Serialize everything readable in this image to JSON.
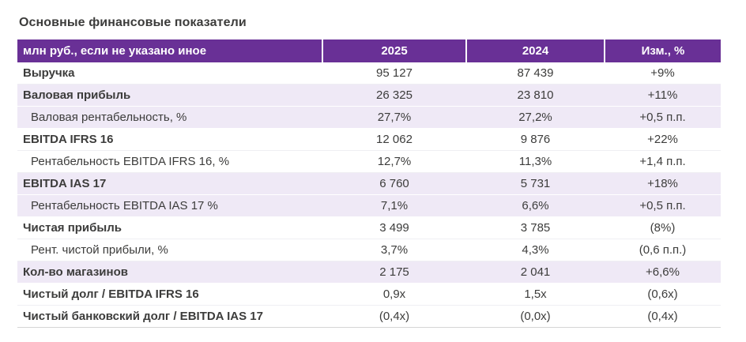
{
  "title": "Основные финансовые показатели",
  "colors": {
    "header_bg": "#693096",
    "shaded_row_bg": "#EFE9F6",
    "text": "#3C3C3B"
  },
  "table": {
    "header": {
      "label": "млн руб., если не указано иное",
      "col_2025": "2025",
      "col_2024": "2024",
      "col_change": "Изм., %"
    },
    "rows": [
      {
        "label": "Выручка",
        "v2025": "95 127",
        "v2024": "87 439",
        "change": "+9%",
        "bold": true,
        "shaded": false,
        "indent": false
      },
      {
        "label": "Валовая прибыль",
        "v2025": "26 325",
        "v2024": "23 810",
        "change": "+11%",
        "bold": true,
        "shaded": true,
        "indent": false
      },
      {
        "label": "Валовая рентабельность, %",
        "v2025": "27,7%",
        "v2024": "27,2%",
        "change": "+0,5 п.п.",
        "bold": false,
        "shaded": true,
        "indent": true
      },
      {
        "label": "EBITDA IFRS 16",
        "v2025": "12 062",
        "v2024": "9 876",
        "change": "+22%",
        "bold": true,
        "shaded": false,
        "indent": false
      },
      {
        "label": "Рентабельность EBITDA IFRS 16, %",
        "v2025": "12,7%",
        "v2024": "11,3%",
        "change": "+1,4 п.п.",
        "bold": false,
        "shaded": false,
        "indent": true
      },
      {
        "label": "EBITDA IAS 17",
        "v2025": "6 760",
        "v2024": "5 731",
        "change": "+18%",
        "bold": true,
        "shaded": true,
        "indent": false
      },
      {
        "label": "Рентабельность EBITDA IAS 17 %",
        "v2025": "7,1%",
        "v2024": "6,6%",
        "change": "+0,5 п.п.",
        "bold": false,
        "shaded": true,
        "indent": true
      },
      {
        "label": "Чистая прибыль",
        "v2025": "3 499",
        "v2024": "3 785",
        "change": "(8%)",
        "bold": true,
        "shaded": false,
        "indent": false
      },
      {
        "label": "Рент. чистой прибыли, %",
        "v2025": "3,7%",
        "v2024": "4,3%",
        "change": "(0,6 п.п.)",
        "bold": false,
        "shaded": false,
        "indent": true
      },
      {
        "label": "Кол-во магазинов",
        "v2025": "2 175",
        "v2024": "2 041",
        "change": "+6,6%",
        "bold": true,
        "shaded": true,
        "indent": false
      },
      {
        "label": "Чистый долг / EBITDA IFRS 16",
        "v2025": "0,9x",
        "v2024": "1,5x",
        "change": "(0,6x)",
        "bold": true,
        "shaded": false,
        "indent": false
      },
      {
        "label": "Чистый банковский долг / EBITDA IAS 17",
        "v2025": "(0,4x)",
        "v2024": "(0,0x)",
        "change": "(0,4x)",
        "bold": true,
        "shaded": false,
        "indent": false
      }
    ]
  }
}
